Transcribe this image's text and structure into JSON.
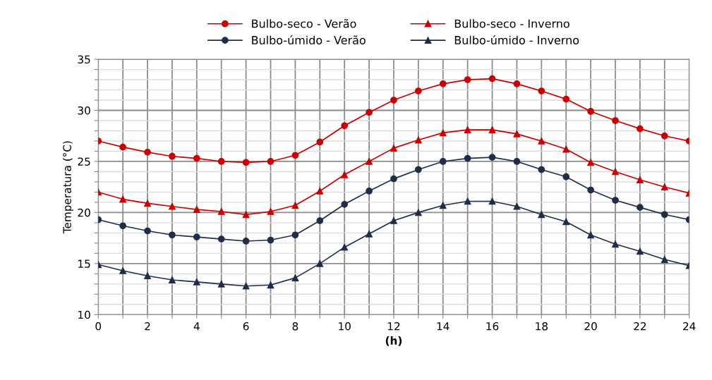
{
  "chart_data": {
    "type": "line",
    "xlabel": "(h)",
    "ylabel": "Temperatura (°C)",
    "x": [
      0,
      1,
      2,
      3,
      4,
      5,
      6,
      7,
      8,
      9,
      10,
      11,
      12,
      13,
      14,
      15,
      16,
      17,
      18,
      19,
      20,
      21,
      22,
      23,
      24
    ],
    "series": [
      {
        "name": "Bulbo-seco - Verão",
        "color": "#cc0000",
        "marker": "circle",
        "values": [
          27.0,
          26.4,
          25.9,
          25.5,
          25.3,
          25.0,
          24.9,
          25.0,
          25.6,
          26.9,
          28.5,
          29.8,
          31.0,
          31.9,
          32.6,
          33.0,
          33.1,
          32.6,
          31.9,
          31.1,
          29.9,
          29.0,
          28.2,
          27.5,
          27.0
        ]
      },
      {
        "name": "Bulbo-úmido - Verão",
        "color": "#1f2d4a",
        "marker": "circle",
        "values": [
          19.3,
          18.7,
          18.2,
          17.8,
          17.6,
          17.4,
          17.2,
          17.3,
          17.8,
          19.2,
          20.8,
          22.1,
          23.3,
          24.2,
          25.0,
          25.3,
          25.4,
          25.0,
          24.2,
          23.5,
          22.2,
          21.2,
          20.5,
          19.8,
          19.3
        ]
      },
      {
        "name": "Bulbo-seco - Inverno",
        "color": "#cc0000",
        "marker": "triangle",
        "values": [
          22.0,
          21.3,
          20.9,
          20.6,
          20.3,
          20.1,
          19.8,
          20.1,
          20.7,
          22.1,
          23.7,
          25.0,
          26.3,
          27.1,
          27.8,
          28.1,
          28.1,
          27.7,
          27.0,
          26.2,
          24.9,
          24.0,
          23.2,
          22.5,
          21.9
        ]
      },
      {
        "name": "Bulbo-úmido - Inverno",
        "color": "#1f2d4a",
        "marker": "triangle",
        "values": [
          14.9,
          14.3,
          13.8,
          13.4,
          13.2,
          13.0,
          12.8,
          12.9,
          13.6,
          15.0,
          16.6,
          17.9,
          19.2,
          20.0,
          20.7,
          21.1,
          21.1,
          20.6,
          19.8,
          19.1,
          17.8,
          16.9,
          16.2,
          15.4,
          14.8
        ]
      }
    ],
    "xlim": [
      0,
      24
    ],
    "ylim": [
      10,
      35
    ],
    "xticks": [
      0,
      {
        "value": 1,
        "label": null
      },
      2,
      {
        "value": 3,
        "label": null
      },
      4,
      {
        "value": 5,
        "label": null
      },
      6,
      {
        "value": 7,
        "label": null
      },
      8,
      {
        "value": 9,
        "label": null
      },
      10,
      {
        "value": 11,
        "label": null
      },
      12,
      {
        "value": 13,
        "label": null
      },
      14,
      {
        "value": 15,
        "label": null
      },
      16,
      {
        "value": 17,
        "label": null
      },
      18,
      {
        "value": 19,
        "label": null
      },
      20,
      {
        "value": 21,
        "label": null
      },
      22,
      {
        "value": 23,
        "label": null
      },
      24
    ],
    "yticks": [
      10,
      {
        "value": 11,
        "label": null
      },
      {
        "value": 12,
        "label": null
      },
      {
        "value": 13,
        "label": null
      },
      {
        "value": 14,
        "label": null
      },
      15,
      {
        "value": 16,
        "label": null
      },
      {
        "value": 17,
        "label": null
      },
      {
        "value": 18,
        "label": null
      },
      {
        "value": 19,
        "label": null
      },
      20,
      {
        "value": 21,
        "label": null
      },
      {
        "value": 22,
        "label": null
      },
      {
        "value": 23,
        "label": null
      },
      {
        "value": 24,
        "label": null
      },
      25,
      {
        "value": 26,
        "label": null
      },
      {
        "value": 27,
        "label": null
      },
      {
        "value": 28,
        "label": null
      },
      {
        "value": 29,
        "label": null
      },
      30,
      {
        "value": 31,
        "label": null
      },
      {
        "value": 32,
        "label": null
      },
      {
        "value": 33,
        "label": null
      },
      {
        "value": 34,
        "label": null
      },
      35
    ],
    "grid": true,
    "legend": "top",
    "line_style": "solid"
  }
}
